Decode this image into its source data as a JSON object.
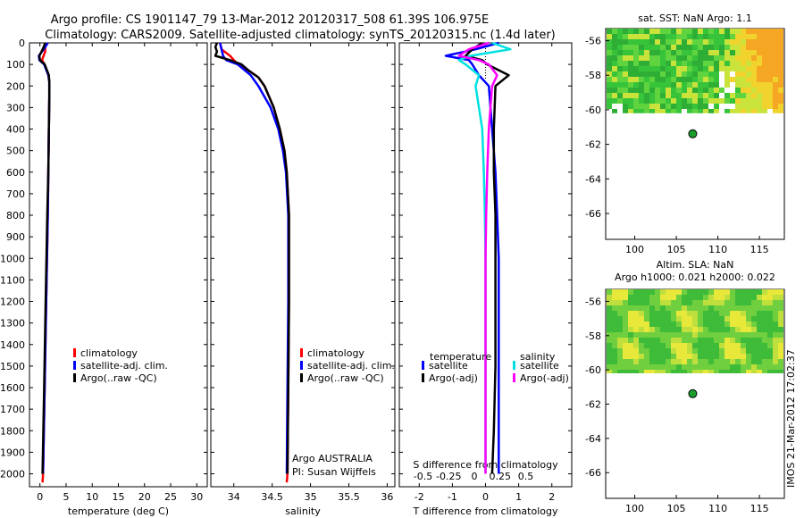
{
  "titles": {
    "line1": "Argo profile: CS 1901147_79 13-Mar-2012 20120317_508 61.39S 106.975E",
    "line2": "Climatology: CARS2009. Satellite-adjusted climatology: synTS_20120315.nc (1.4d later)"
  },
  "depth_ticks": [
    0,
    100,
    200,
    300,
    400,
    500,
    600,
    700,
    800,
    900,
    1000,
    1100,
    1200,
    1300,
    1400,
    1500,
    1600,
    1700,
    1800,
    1900,
    2000
  ],
  "chart_data": [
    {
      "type": "line",
      "id": "temperature",
      "xlabel": "temperature (deg C)",
      "xlim": [
        -2,
        32
      ],
      "ylim": [
        2060,
        0
      ],
      "xticks": [
        0,
        5,
        10,
        15,
        20,
        25,
        30
      ],
      "legend": [
        "climatology",
        "satellite-adj. clim.",
        "Argo(..raw -QC)"
      ],
      "series": [
        {
          "name": "climatology",
          "color": "#ff0000",
          "depth": [
            0,
            40,
            80,
            100,
            150,
            180,
            250,
            400,
            600,
            800,
            1200,
            1600,
            2000,
            2040
          ],
          "values": [
            1.0,
            1.0,
            0.4,
            0.9,
            1.6,
            1.8,
            1.8,
            1.7,
            1.6,
            1.5,
            1.2,
            0.9,
            0.6,
            0.5
          ]
        },
        {
          "name": "satellite-adj. clim.",
          "color": "#0000ff",
          "depth": [
            0,
            20,
            40,
            60,
            80,
            100,
            150,
            180,
            250,
            400,
            600,
            800,
            1200,
            1600,
            2000
          ],
          "values": [
            1.5,
            1.0,
            0.4,
            -0.2,
            -0.1,
            0.8,
            1.6,
            1.8,
            1.8,
            1.7,
            1.6,
            1.5,
            1.2,
            0.9,
            0.6
          ]
        },
        {
          "name": "Argo(..raw -QC)",
          "color": "#000000",
          "depth": [
            0,
            20,
            40,
            60,
            80,
            100,
            150,
            180,
            250,
            400,
            600,
            800,
            1200,
            1600,
            2000
          ],
          "values": [
            1.0,
            0.7,
            0.3,
            -0.1,
            0.0,
            0.9,
            1.7,
            1.8,
            1.8,
            1.7,
            1.6,
            1.4,
            1.1,
            0.8,
            0.5
          ]
        }
      ]
    },
    {
      "type": "line",
      "id": "salinity",
      "xlabel": "salinity",
      "xlim": [
        33.7,
        36.1
      ],
      "ylim": [
        2060,
        0
      ],
      "xticks": [
        34,
        34.5,
        35,
        35.5,
        36
      ],
      "xticklabels": [
        "34",
        "34.5",
        "35",
        "35.5",
        "36"
      ],
      "legend": [
        "climatology",
        "satellite-adj. clim.",
        "Argo(..raw -QC)"
      ],
      "annotation": [
        "Argo AUSTRALIA",
        "PI: Susan Wijffels"
      ],
      "series": [
        {
          "name": "climatology",
          "color": "#ff0000",
          "depth": [
            0,
            30,
            60,
            100,
            130,
            160,
            200,
            300,
            400,
            500,
            600,
            800,
            1200,
            1600,
            2000,
            2040
          ],
          "values": [
            33.82,
            33.84,
            33.95,
            34.05,
            34.2,
            34.32,
            34.4,
            34.52,
            34.6,
            34.66,
            34.69,
            34.72,
            34.72,
            34.71,
            34.7,
            34.69
          ]
        },
        {
          "name": "satellite-adj. clim.",
          "color": "#0000ff",
          "depth": [
            0,
            30,
            60,
            80,
            100,
            150,
            200,
            300,
            400,
            500,
            600,
            800,
            1200,
            1600,
            2000
          ],
          "values": [
            33.82,
            33.84,
            33.86,
            33.9,
            34.05,
            34.22,
            34.32,
            34.48,
            34.58,
            34.64,
            34.68,
            34.71,
            34.71,
            34.7,
            34.69
          ]
        },
        {
          "name": "Argo(..raw -QC)",
          "color": "#000000",
          "depth": [
            0,
            20,
            40,
            60,
            80,
            100,
            130,
            160,
            200,
            300,
            400,
            500,
            600,
            800,
            1200,
            1600,
            2000
          ],
          "values": [
            33.78,
            33.76,
            33.78,
            33.76,
            33.95,
            34.1,
            34.2,
            34.32,
            34.4,
            34.52,
            34.6,
            34.66,
            34.69,
            34.72,
            34.72,
            34.71,
            34.7
          ]
        }
      ]
    },
    {
      "type": "line",
      "id": "differences",
      "xlabel": "T difference from climatology",
      "xlabel_top": "S difference from climatology",
      "xlim": [
        -2.6,
        2.6
      ],
      "ylim": [
        2060,
        0
      ],
      "xticks": [
        -2,
        -1,
        0,
        1,
        2
      ],
      "sticks": [
        -0.5,
        -0.25,
        0,
        0.25,
        0.5
      ],
      "sticklabels": [
        "-0.5",
        "-0.25",
        "0",
        "0.25",
        "0.5"
      ],
      "legend_headers": [
        "temperature",
        "salinity"
      ],
      "legend": [
        "satellite",
        "Argo(-adj)",
        "satellite",
        "Argo(-adj)"
      ],
      "series": [
        {
          "name": "temperature satellite",
          "color": "#0000ff",
          "depth": [
            0,
            30,
            60,
            80,
            100,
            150,
            200,
            400,
            600,
            800,
            1000,
            1200,
            1500,
            1800,
            2000
          ],
          "values": [
            0.4,
            -0.3,
            -1.2,
            -0.5,
            -0.4,
            -0.2,
            0.1,
            0.2,
            0.3,
            0.35,
            0.4,
            0.4,
            0.4,
            0.4,
            0.4
          ]
        },
        {
          "name": "temperature Argo(-adj)",
          "color": "#000000",
          "depth": [
            0,
            30,
            60,
            80,
            100,
            150,
            200,
            400,
            600,
            800,
            1000,
            1200,
            1500,
            1800,
            2000
          ],
          "values": [
            -0.1,
            -0.4,
            -0.6,
            -0.1,
            0.05,
            0.7,
            0.3,
            0.25,
            0.25,
            0.3,
            0.3,
            0.3,
            0.3,
            0.25,
            0.2
          ]
        },
        {
          "name": "salinity satellite",
          "color": "#00e0e0",
          "depth": [
            0,
            30,
            60,
            80,
            100,
            150,
            200,
            400,
            600,
            800,
            1000,
            1200,
            1500,
            1800,
            2000
          ],
          "values": [
            0.2,
            0.75,
            -0.45,
            -0.8,
            -0.6,
            -0.2,
            -0.3,
            -0.1,
            -0.05,
            -0.02,
            0.0,
            0.0,
            0.0,
            0.0,
            0.0
          ]
        },
        {
          "name": "salinity Argo(-adj)",
          "color": "#ff00ff",
          "depth": [
            0,
            30,
            60,
            80,
            100,
            150,
            200,
            400,
            600,
            800,
            1000,
            1200,
            1500,
            1800,
            2000
          ],
          "values": [
            0.1,
            -0.5,
            -0.8,
            -0.2,
            0.1,
            0.35,
            0.2,
            0.1,
            0.05,
            0.02,
            0.0,
            0.0,
            0.0,
            0.0,
            0.0
          ]
        }
      ]
    },
    {
      "type": "heatmap",
      "id": "sst_map",
      "title": "sat. SST: NaN Argo: 1.1",
      "xlim": [
        96.5,
        118
      ],
      "ylim": [
        -67.5,
        -55.3
      ],
      "xticks": [
        100,
        105,
        110,
        115
      ],
      "yticks": [
        -56,
        -58,
        -60,
        -62,
        -64,
        -66
      ],
      "data_lat_range": [
        -60.2,
        -55.3
      ],
      "marker": {
        "lon": 106.975,
        "lat": -61.39
      }
    },
    {
      "type": "heatmap",
      "id": "sla_map",
      "title": "Altim. SLA: NaN",
      "subtitle": "Argo h1000: 0.021 h2000: 0.022",
      "xlim": [
        96.5,
        118
      ],
      "ylim": [
        -67.5,
        -55.3
      ],
      "xticks": [
        100,
        105,
        110,
        115
      ],
      "yticks": [
        -56,
        -58,
        -60,
        -62,
        -64,
        -66
      ],
      "data_lat_range": [
        -60.2,
        -55.3
      ],
      "marker": {
        "lon": 106.975,
        "lat": -61.39
      },
      "side_label": "IMOS 21-Mar-2012 17:02:37"
    }
  ]
}
